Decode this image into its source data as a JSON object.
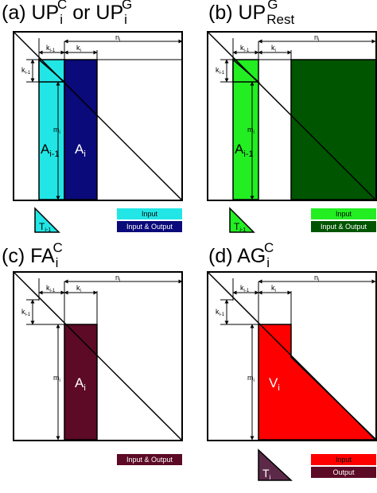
{
  "panels": {
    "a": {
      "title": {
        "prefix": "(a) UP",
        "sub": "i",
        "sup": "C",
        "mid": " or UP",
        "sub2": "i",
        "sup2": "G"
      },
      "dims": {
        "n": "n",
        "n_sub": "i",
        "k1": "k",
        "k1_sub": "i-1",
        "k2": "k",
        "k2_sub": "i",
        "kv": "k",
        "kv_sub": "i-1",
        "m": "m",
        "m_sub": "i"
      },
      "blocks": {
        "left": "A",
        "left_sub": "i-1",
        "right": "A",
        "right_sub": "i"
      },
      "tri": {
        "text": "T",
        "sub": "i-1"
      },
      "legend": {
        "input": "Input",
        "io": "Input & Output"
      }
    },
    "b": {
      "title": {
        "prefix": "(b) UP",
        "sub": "Rest",
        "sup": "G"
      },
      "dims": {
        "n": "n",
        "n_sub": "i",
        "k1": "k",
        "k1_sub": "i-1",
        "k2": "k",
        "k2_sub": "i",
        "kv": "k",
        "kv_sub": "i-1",
        "m": "m",
        "m_sub": "i"
      },
      "blocks": {
        "left": "A",
        "left_sub": "i-1"
      },
      "tri": {
        "text": "T",
        "sub": "i-1"
      },
      "legend": {
        "input": "Input",
        "io": "Input & Output"
      }
    },
    "c": {
      "title": {
        "prefix": "(c) FA",
        "sub": "i",
        "sup": "C"
      },
      "dims": {
        "n": "n",
        "n_sub": "i",
        "k1": "k",
        "k1_sub": "i-1",
        "k2": "k",
        "k2_sub": "i",
        "kv": "k",
        "kv_sub": "i-1",
        "m": "m",
        "m_sub": "i"
      },
      "blocks": {
        "right": "A",
        "right_sub": "i"
      },
      "legend": {
        "io": "Input & Output"
      }
    },
    "d": {
      "title": {
        "prefix": "(d) AG",
        "sub": "i",
        "sup": "C"
      },
      "dims": {
        "n": "n",
        "n_sub": "i",
        "k1": "k",
        "k1_sub": "i-1",
        "k2": "k",
        "k2_sub": "i",
        "kv": "k",
        "kv_sub": "i-1",
        "m": "m",
        "m_sub": "i"
      },
      "blocks": {
        "right": "V",
        "right_sub": "i"
      },
      "tri": {
        "text": "T",
        "sub": "i"
      },
      "legend": {
        "input": "Input",
        "output": "Output"
      }
    }
  },
  "colors": {
    "cyan": "#22e6e6",
    "navy": "#0a0a7a",
    "lightgreen": "#22ee22",
    "darkgreen": "#005500",
    "maroon": "#5c0a26",
    "red": "#ff0000",
    "darkred": "#5c0a26",
    "darktri": "#5c2a48"
  }
}
